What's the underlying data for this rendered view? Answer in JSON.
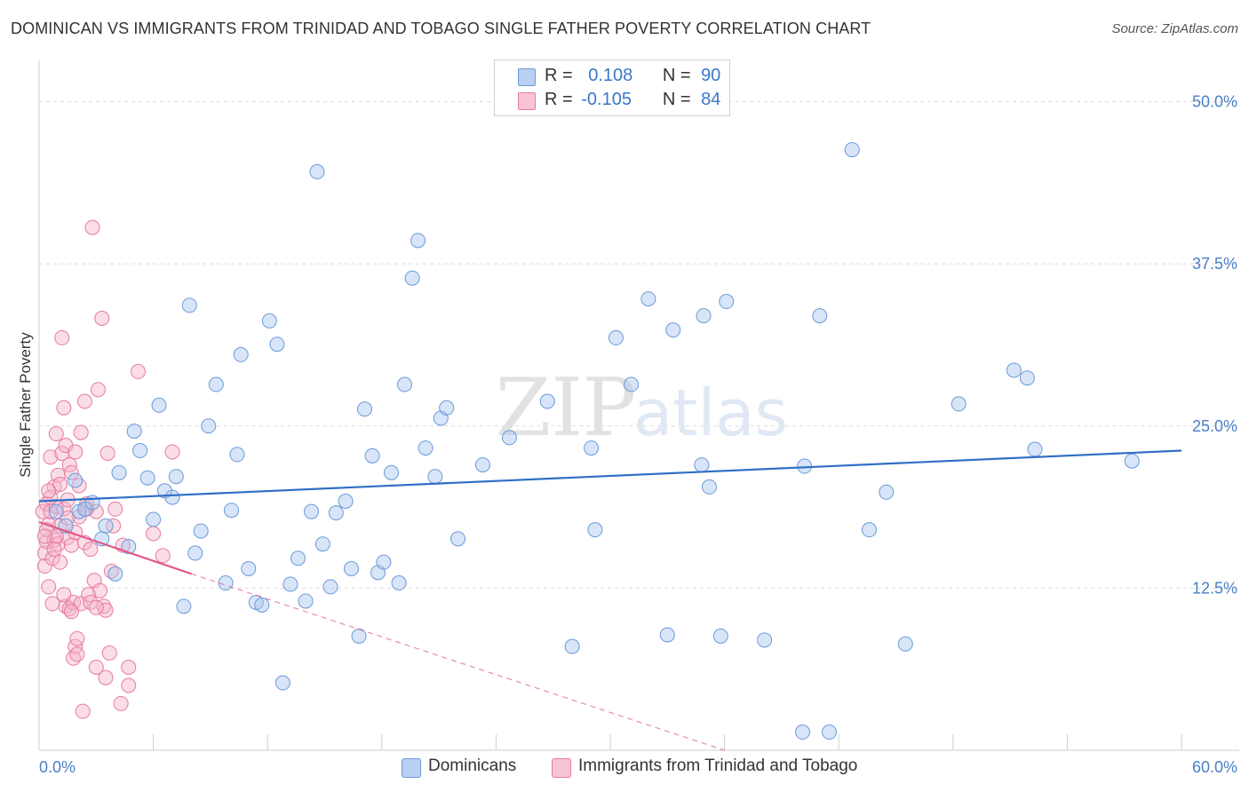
{
  "chart_data": {
    "type": "scatter",
    "title": "DOMINICAN VS IMMIGRANTS FROM TRINIDAD AND TOBAGO SINGLE FATHER POVERTY CORRELATION CHART",
    "source": "Source: ZipAtlas.com",
    "ylabel": "Single Father Poverty",
    "xlim": [
      0,
      60
    ],
    "ylim": [
      0,
      52.5
    ],
    "x_tick_labels": {
      "left": "0.0%",
      "right": "60.0%"
    },
    "y_ticks": [
      {
        "value": 12.5,
        "label": "12.5%"
      },
      {
        "value": 25.0,
        "label": "25.0%"
      },
      {
        "value": 37.5,
        "label": "37.5%"
      },
      {
        "value": 50.0,
        "label": "50.0%"
      }
    ],
    "watermark": {
      "zip": "ZIP",
      "atlas": "atlas"
    },
    "legend": [
      {
        "r_label": "R =",
        "r_value": "0.108",
        "n_label": "N =",
        "n_value": "90"
      },
      {
        "r_label": "R =",
        "r_value": "-0.105",
        "n_label": "N =",
        "n_value": "84"
      }
    ],
    "colors": {
      "blue_fill": "#a8c6ef",
      "blue_stroke": "#6a9ad8",
      "blue_line": "#2f6fc6",
      "pink_fill": "#f5b3c9",
      "pink_stroke": "#e87aa0",
      "pink_line": "#e0598b"
    },
    "series": [
      {
        "name": "Dominicans",
        "trend": {
          "x0": 0.0,
          "y0": 19.2,
          "x1": 60.0,
          "y1": 23.1,
          "dashed_to": null
        },
        "points": [
          [
            0.9,
            18.4
          ],
          [
            1.4,
            17.3
          ],
          [
            1.9,
            20.8
          ],
          [
            2.1,
            18.4
          ],
          [
            2.4,
            18.6
          ],
          [
            2.8,
            19.1
          ],
          [
            3.3,
            16.3
          ],
          [
            3.5,
            17.3
          ],
          [
            4.0,
            13.6
          ],
          [
            4.2,
            21.4
          ],
          [
            4.7,
            15.7
          ],
          [
            5.0,
            24.6
          ],
          [
            5.3,
            23.1
          ],
          [
            5.7,
            21.0
          ],
          [
            6.0,
            17.8
          ],
          [
            6.3,
            26.6
          ],
          [
            6.6,
            20.0
          ],
          [
            7.0,
            19.5
          ],
          [
            7.2,
            21.1
          ],
          [
            7.6,
            11.1
          ],
          [
            7.9,
            34.3
          ],
          [
            8.2,
            15.2
          ],
          [
            8.5,
            16.9
          ],
          [
            8.9,
            25.0
          ],
          [
            9.3,
            28.2
          ],
          [
            9.8,
            12.9
          ],
          [
            10.1,
            18.5
          ],
          [
            10.4,
            22.8
          ],
          [
            10.6,
            30.5
          ],
          [
            11.0,
            14.0
          ],
          [
            11.4,
            11.4
          ],
          [
            11.7,
            11.2
          ],
          [
            12.1,
            33.1
          ],
          [
            12.5,
            31.3
          ],
          [
            12.8,
            5.2
          ],
          [
            13.2,
            12.8
          ],
          [
            13.6,
            14.8
          ],
          [
            14.0,
            11.5
          ],
          [
            14.3,
            18.4
          ],
          [
            14.6,
            44.6
          ],
          [
            14.9,
            15.9
          ],
          [
            15.3,
            12.6
          ],
          [
            15.6,
            18.3
          ],
          [
            16.1,
            19.2
          ],
          [
            16.4,
            14.0
          ],
          [
            16.8,
            8.8
          ],
          [
            17.1,
            26.3
          ],
          [
            17.5,
            22.7
          ],
          [
            17.8,
            13.7
          ],
          [
            18.1,
            14.5
          ],
          [
            18.5,
            21.4
          ],
          [
            18.9,
            12.9
          ],
          [
            19.2,
            28.2
          ],
          [
            19.6,
            36.4
          ],
          [
            19.9,
            39.3
          ],
          [
            20.3,
            23.3
          ],
          [
            20.8,
            21.1
          ],
          [
            21.1,
            25.6
          ],
          [
            21.4,
            26.4
          ],
          [
            22.0,
            16.3
          ],
          [
            23.3,
            22.0
          ],
          [
            24.7,
            24.1
          ],
          [
            26.7,
            26.9
          ],
          [
            28.0,
            8.0
          ],
          [
            29.0,
            23.3
          ],
          [
            29.2,
            17.0
          ],
          [
            30.3,
            31.8
          ],
          [
            31.1,
            28.2
          ],
          [
            32.0,
            34.8
          ],
          [
            33.0,
            8.9
          ],
          [
            33.3,
            32.4
          ],
          [
            34.8,
            22.0
          ],
          [
            34.9,
            33.5
          ],
          [
            35.2,
            20.3
          ],
          [
            35.8,
            8.8
          ],
          [
            36.1,
            34.6
          ],
          [
            38.1,
            8.5
          ],
          [
            40.1,
            1.4
          ],
          [
            40.2,
            21.9
          ],
          [
            41.5,
            1.4
          ],
          [
            42.7,
            46.3
          ],
          [
            43.6,
            17.0
          ],
          [
            44.5,
            19.9
          ],
          [
            45.5,
            8.2
          ],
          [
            48.3,
            26.7
          ],
          [
            51.2,
            29.3
          ],
          [
            51.9,
            28.7
          ],
          [
            52.3,
            23.2
          ],
          [
            57.4,
            22.3
          ],
          [
            41.0,
            33.5
          ]
        ]
      },
      {
        "name": "Immigrants from Trinidad and Tobago",
        "trend": {
          "x0": 0.0,
          "y0": 17.6,
          "x1": 8.0,
          "y1": 13.6,
          "dashed_to": [
            36.0,
            0.0
          ]
        },
        "points": [
          [
            0.2,
            18.4
          ],
          [
            0.3,
            15.2
          ],
          [
            0.3,
            14.2
          ],
          [
            0.4,
            16.1
          ],
          [
            0.4,
            19.0
          ],
          [
            0.5,
            12.6
          ],
          [
            0.5,
            17.4
          ],
          [
            0.6,
            22.6
          ],
          [
            0.6,
            18.4
          ],
          [
            0.7,
            11.3
          ],
          [
            0.7,
            14.8
          ],
          [
            0.8,
            20.3
          ],
          [
            0.8,
            16.2
          ],
          [
            0.9,
            18.8
          ],
          [
            0.9,
            24.4
          ],
          [
            1.0,
            15.9
          ],
          [
            1.0,
            21.2
          ],
          [
            1.1,
            17.3
          ],
          [
            1.1,
            14.5
          ],
          [
            1.2,
            31.8
          ],
          [
            1.2,
            22.9
          ],
          [
            1.3,
            26.4
          ],
          [
            1.3,
            18.6
          ],
          [
            1.4,
            11.1
          ],
          [
            1.4,
            23.5
          ],
          [
            1.5,
            19.3
          ],
          [
            1.5,
            16.4
          ],
          [
            1.6,
            22.0
          ],
          [
            1.6,
            10.9
          ],
          [
            1.7,
            15.8
          ],
          [
            1.7,
            21.4
          ],
          [
            1.8,
            11.4
          ],
          [
            1.8,
            7.1
          ],
          [
            1.9,
            8.0
          ],
          [
            1.9,
            23.0
          ],
          [
            2.0,
            7.4
          ],
          [
            2.0,
            8.6
          ],
          [
            2.1,
            20.4
          ],
          [
            2.1,
            18.0
          ],
          [
            2.2,
            24.5
          ],
          [
            2.2,
            11.3
          ],
          [
            2.3,
            3.0
          ],
          [
            2.4,
            26.9
          ],
          [
            2.4,
            16.0
          ],
          [
            2.5,
            19.0
          ],
          [
            2.6,
            12.0
          ],
          [
            2.7,
            11.4
          ],
          [
            2.8,
            40.3
          ],
          [
            2.9,
            13.1
          ],
          [
            3.0,
            18.4
          ],
          [
            3.0,
            6.4
          ],
          [
            3.1,
            27.8
          ],
          [
            3.2,
            12.3
          ],
          [
            3.3,
            33.3
          ],
          [
            3.4,
            11.1
          ],
          [
            3.5,
            10.8
          ],
          [
            3.5,
            5.6
          ],
          [
            3.6,
            22.9
          ],
          [
            3.7,
            7.5
          ],
          [
            3.8,
            13.8
          ],
          [
            3.9,
            17.3
          ],
          [
            4.0,
            18.6
          ],
          [
            4.3,
            3.6
          ],
          [
            4.4,
            15.8
          ],
          [
            4.7,
            6.4
          ],
          [
            4.7,
            5.0
          ],
          [
            5.2,
            29.2
          ],
          [
            6.0,
            16.7
          ],
          [
            6.5,
            15.0
          ],
          [
            7.0,
            23.0
          ],
          [
            0.4,
            17.0
          ],
          [
            0.9,
            16.5
          ],
          [
            1.5,
            17.9
          ],
          [
            2.5,
            18.6
          ],
          [
            0.6,
            19.5
          ],
          [
            1.1,
            20.5
          ],
          [
            3.0,
            11.0
          ],
          [
            0.3,
            16.5
          ],
          [
            0.8,
            15.5
          ],
          [
            1.9,
            16.8
          ],
          [
            2.7,
            15.5
          ],
          [
            1.3,
            12.0
          ],
          [
            0.5,
            20.0
          ],
          [
            1.7,
            10.7
          ]
        ]
      }
    ]
  }
}
